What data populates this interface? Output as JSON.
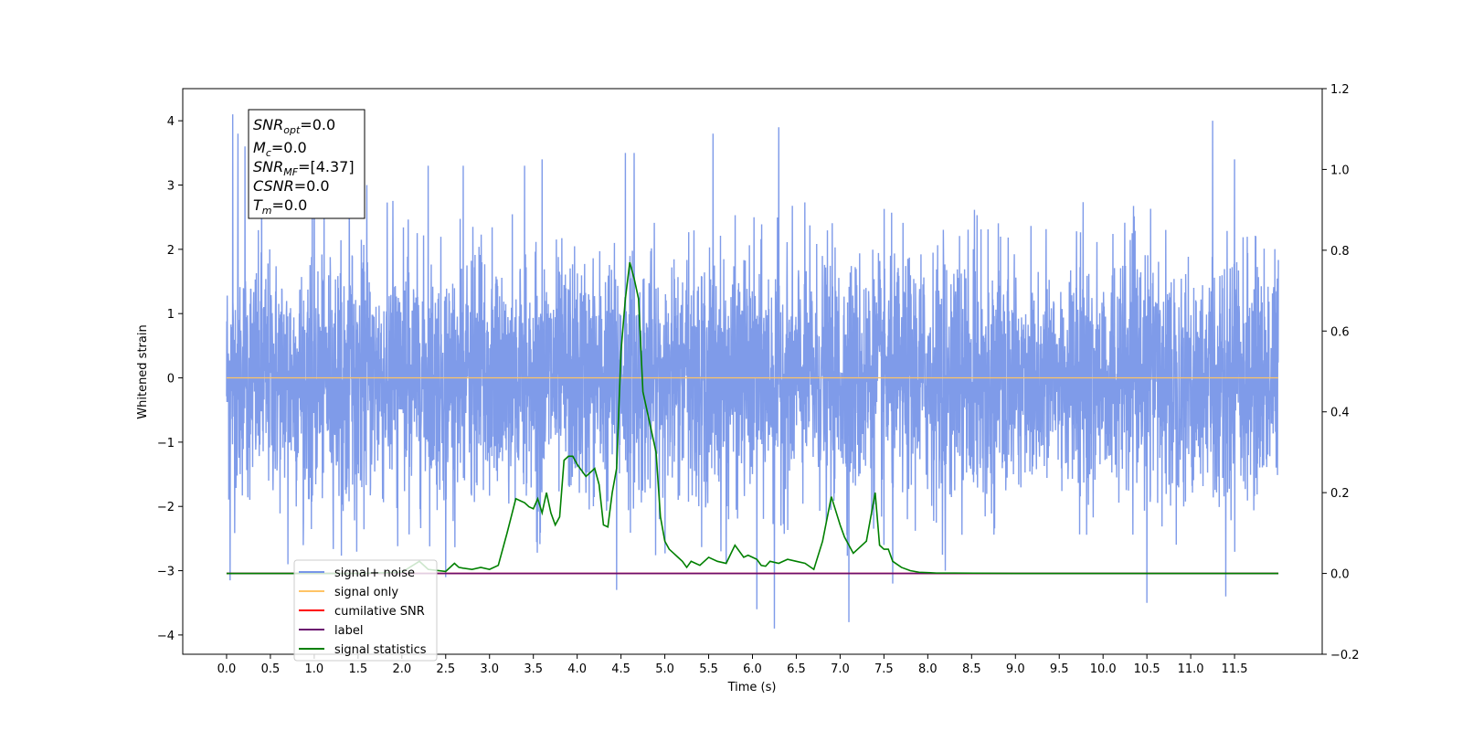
{
  "chart_data": {
    "type": "line",
    "xlabel": "Time (s)",
    "ylabel": "Whitened strain",
    "xlim": [
      -0.5,
      12.5
    ],
    "ylim": [
      -4.3,
      4.5
    ],
    "y2lim": [
      -0.2,
      1.2
    ],
    "x_ticks": [
      "0.0",
      "0.5",
      "1.0",
      "1.5",
      "2.0",
      "2.5",
      "3.0",
      "3.5",
      "4.0",
      "4.5",
      "5.0",
      "5.5",
      "6.0",
      "6.5",
      "7.0",
      "7.5",
      "8.0",
      "8.5",
      "9.0",
      "9.5",
      "10.0",
      "10.5",
      "11.0",
      "11.5"
    ],
    "y_ticks": [
      -4,
      -3,
      -2,
      -1,
      0,
      1,
      2,
      3,
      4
    ],
    "y_tick_labels": [
      "−4",
      "−3",
      "−2",
      "−1",
      "0",
      "1",
      "2",
      "3",
      "4"
    ],
    "y2_ticks": [
      -0.2,
      0.0,
      0.2,
      0.4,
      0.6,
      0.8,
      1.0,
      1.2
    ],
    "y2_tick_labels": [
      "−0.2",
      "0.0",
      "0.2",
      "0.4",
      "0.6",
      "0.8",
      "1.0",
      "1.2"
    ],
    "legend_placement": "lower-left",
    "series": [
      {
        "name": "signal+ noise",
        "color": "#7896e8",
        "axis": "left",
        "description_type": "whitened noise, approx. Gaussian, sd ~0.95, spanning t=0 to 12.0 s",
        "spikes": [
          [
            0.04,
            -3.15
          ],
          [
            0.07,
            4.1
          ],
          [
            0.13,
            3.8
          ],
          [
            0.21,
            3.6
          ],
          [
            0.4,
            3.3
          ],
          [
            0.7,
            -2.9
          ],
          [
            1.0,
            3.3
          ],
          [
            1.4,
            3.4
          ],
          [
            1.6,
            3.0
          ],
          [
            2.3,
            3.3
          ],
          [
            2.5,
            -3.1
          ],
          [
            2.7,
            3.3
          ],
          [
            3.4,
            3.3
          ],
          [
            3.6,
            3.4
          ],
          [
            4.45,
            -3.3
          ],
          [
            4.55,
            3.5
          ],
          [
            4.65,
            3.5
          ],
          [
            5.55,
            3.8
          ],
          [
            5.7,
            -2.9
          ],
          [
            6.05,
            -3.6
          ],
          [
            6.25,
            -3.9
          ],
          [
            6.3,
            3.9
          ],
          [
            7.1,
            -3.8
          ],
          [
            7.5,
            -2.6
          ],
          [
            7.6,
            -3.2
          ],
          [
            8.2,
            -3.0
          ],
          [
            10.5,
            -3.5
          ],
          [
            11.25,
            4.0
          ],
          [
            11.4,
            -3.4
          ],
          [
            11.5,
            3.4
          ]
        ]
      },
      {
        "name": "signal only",
        "color": "#ffc466",
        "axis": "left",
        "x": [
          0.0,
          12.0
        ],
        "y": [
          0.0,
          0.0
        ]
      },
      {
        "name": "cumilative SNR",
        "color": "#ff0000",
        "axis": "right",
        "x": [
          0.0,
          12.0
        ],
        "y": [
          0.0,
          0.0
        ]
      },
      {
        "name": "label",
        "color": "#6a0f6f",
        "axis": "right",
        "x": [
          0.0,
          12.0
        ],
        "y": [
          0.0,
          0.0
        ]
      },
      {
        "name": "signal statistics",
        "color": "#008000",
        "axis": "right",
        "x": [
          0.0,
          1.5,
          2.0,
          2.2,
          2.3,
          2.5,
          2.6,
          2.65,
          2.7,
          2.8,
          2.9,
          3.0,
          3.1,
          3.2,
          3.3,
          3.35,
          3.4,
          3.45,
          3.5,
          3.55,
          3.6,
          3.65,
          3.7,
          3.75,
          3.8,
          3.85,
          3.9,
          3.95,
          4.0,
          4.1,
          4.15,
          4.2,
          4.25,
          4.3,
          4.35,
          4.4,
          4.45,
          4.5,
          4.55,
          4.6,
          4.65,
          4.7,
          4.75,
          4.8,
          4.85,
          4.9,
          4.95,
          5.0,
          5.05,
          5.1,
          5.15,
          5.2,
          5.25,
          5.3,
          5.35,
          5.4,
          5.5,
          5.6,
          5.7,
          5.8,
          5.9,
          5.95,
          6.0,
          6.05,
          6.1,
          6.15,
          6.2,
          6.3,
          6.4,
          6.5,
          6.6,
          6.7,
          6.8,
          6.9,
          7.0,
          7.05,
          7.1,
          7.15,
          7.2,
          7.3,
          7.4,
          7.45,
          7.5,
          7.55,
          7.6,
          7.7,
          7.8,
          7.9,
          8.0,
          8.1,
          8.3,
          9.0,
          10.0,
          11.0,
          12.0
        ],
        "y": [
          0.0,
          0.0,
          0.003,
          0.03,
          0.01,
          0.005,
          0.025,
          0.015,
          0.013,
          0.01,
          0.015,
          0.01,
          0.02,
          0.1,
          0.185,
          0.18,
          0.175,
          0.165,
          0.16,
          0.185,
          0.15,
          0.2,
          0.15,
          0.12,
          0.14,
          0.28,
          0.29,
          0.29,
          0.27,
          0.24,
          0.25,
          0.26,
          0.22,
          0.12,
          0.115,
          0.2,
          0.26,
          0.55,
          0.68,
          0.77,
          0.73,
          0.68,
          0.45,
          0.4,
          0.35,
          0.3,
          0.14,
          0.08,
          0.06,
          0.05,
          0.04,
          0.03,
          0.015,
          0.03,
          0.025,
          0.02,
          0.04,
          0.03,
          0.025,
          0.07,
          0.04,
          0.045,
          0.04,
          0.035,
          0.02,
          0.018,
          0.03,
          0.025,
          0.035,
          0.03,
          0.025,
          0.01,
          0.08,
          0.19,
          0.12,
          0.09,
          0.07,
          0.05,
          0.06,
          0.08,
          0.2,
          0.07,
          0.06,
          0.06,
          0.03,
          0.015,
          0.007,
          0.003,
          0.002,
          0.001,
          0.001,
          0.0,
          0.0,
          0.0,
          0.0
        ]
      }
    ],
    "legend": [
      "signal+ noise",
      "signal only",
      "cumilative SNR",
      "label",
      "signal statistics"
    ],
    "legend_overlap_text": "signal only"
  },
  "annotation": {
    "snr_opt_sym": "SNR",
    "snr_opt_sub": "opt",
    "snr_opt_val": "=0.0",
    "mc_sym": "M",
    "mc_sub": "c",
    "mc_val": "=0.0",
    "snr_mf_sym": "SNR",
    "snr_mf_sub": "MF",
    "snr_mf_val": "=[4.37]",
    "csnr_sym": "CSNR",
    "csnr_val": "=0.0",
    "tm_sym": "T",
    "tm_sub": "m",
    "tm_val": "=0.0"
  }
}
